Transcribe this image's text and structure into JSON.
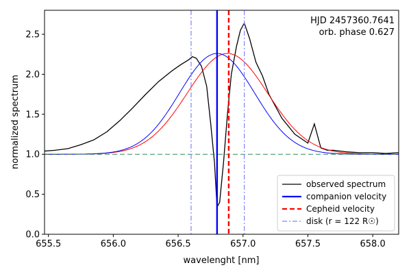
{
  "chart_data": {
    "type": "line",
    "title": "",
    "xlabel": "wavelenght [nm]",
    "ylabel": "normalized spectrum",
    "xlim": [
      655.47,
      658.2
    ],
    "ylim": [
      0.0,
      2.8
    ],
    "x_ticks": [
      655.5,
      656.0,
      656.5,
      657.0,
      657.5,
      658.0
    ],
    "x_tick_labels": [
      "655.5",
      "656.0",
      "656.5",
      "657.0",
      "657.5",
      "658.0"
    ],
    "y_ticks": [
      0.0,
      0.5,
      1.0,
      1.5,
      2.0,
      2.5
    ],
    "y_tick_labels": [
      "0.0",
      "0.5",
      "1.0",
      "1.5",
      "2.0",
      "2.5"
    ],
    "annotations": [
      "HJD 2457360.7641",
      "orb. phase 0.627"
    ],
    "legend_position": "lower-right",
    "series": [
      {
        "name": "observed spectrum",
        "color": "#000000",
        "style": "solid",
        "x": [
          655.47,
          655.55,
          655.65,
          655.75,
          655.85,
          655.95,
          656.05,
          656.15,
          656.25,
          656.35,
          656.45,
          656.52,
          656.58,
          656.61,
          656.64,
          656.68,
          656.72,
          656.75,
          656.78,
          656.8,
          656.82,
          656.85,
          656.88,
          656.91,
          656.95,
          656.98,
          657.01,
          657.05,
          657.1,
          657.15,
          657.2,
          657.3,
          657.4,
          657.5,
          657.55,
          657.6,
          657.65,
          657.7,
          657.8,
          657.9,
          658.0,
          658.1,
          658.2
        ],
        "y": [
          1.04,
          1.05,
          1.07,
          1.12,
          1.18,
          1.28,
          1.42,
          1.58,
          1.75,
          1.91,
          2.04,
          2.12,
          2.18,
          2.22,
          2.2,
          2.1,
          1.85,
          1.4,
          0.9,
          0.34,
          0.4,
          0.9,
          1.5,
          2.0,
          2.35,
          2.55,
          2.64,
          2.45,
          2.15,
          1.98,
          1.75,
          1.45,
          1.25,
          1.14,
          1.38,
          1.08,
          1.05,
          1.05,
          1.03,
          1.02,
          1.02,
          1.01,
          1.02
        ]
      },
      {
        "name": "gaussian-red-model",
        "color": "#ff0000",
        "style": "solid",
        "type": "gaussian",
        "center": 656.88,
        "amplitude": 1.26,
        "sigma": 0.31,
        "baseline": 1.0
      },
      {
        "name": "gaussian-blue-model",
        "color": "#0000ff",
        "style": "solid",
        "type": "gaussian",
        "center": 656.8,
        "amplitude": 1.26,
        "sigma": 0.29,
        "baseline": 1.0
      },
      {
        "name": "continuum-level",
        "color": "#2e8b57",
        "style": "dashed",
        "type": "hline",
        "y": 1.0
      }
    ],
    "vlines": [
      {
        "name": "companion velocity",
        "x": 656.8,
        "color": "#0000ff",
        "style": "solid"
      },
      {
        "name": "Cepheid velocity",
        "x": 656.89,
        "color": "#ff0000",
        "style": "dashed"
      },
      {
        "name": "disk-left",
        "x": 656.6,
        "color": "#8080ff",
        "style": "dashdot"
      },
      {
        "name": "disk-right",
        "x": 657.01,
        "color": "#8080ff",
        "style": "dashdot"
      }
    ],
    "legend": [
      {
        "label": "observed spectrum",
        "color": "#000000",
        "style": "solid",
        "width": 1.2
      },
      {
        "label": "companion velocity",
        "color": "#0000ff",
        "style": "solid",
        "width": 2.2
      },
      {
        "label": "Cepheid velocity",
        "color": "#ff0000",
        "style": "dashed",
        "width": 2.2
      },
      {
        "label": "disk (r = 122 R☉)",
        "color": "#8080ff",
        "style": "dashdot",
        "width": 1.2
      }
    ]
  }
}
